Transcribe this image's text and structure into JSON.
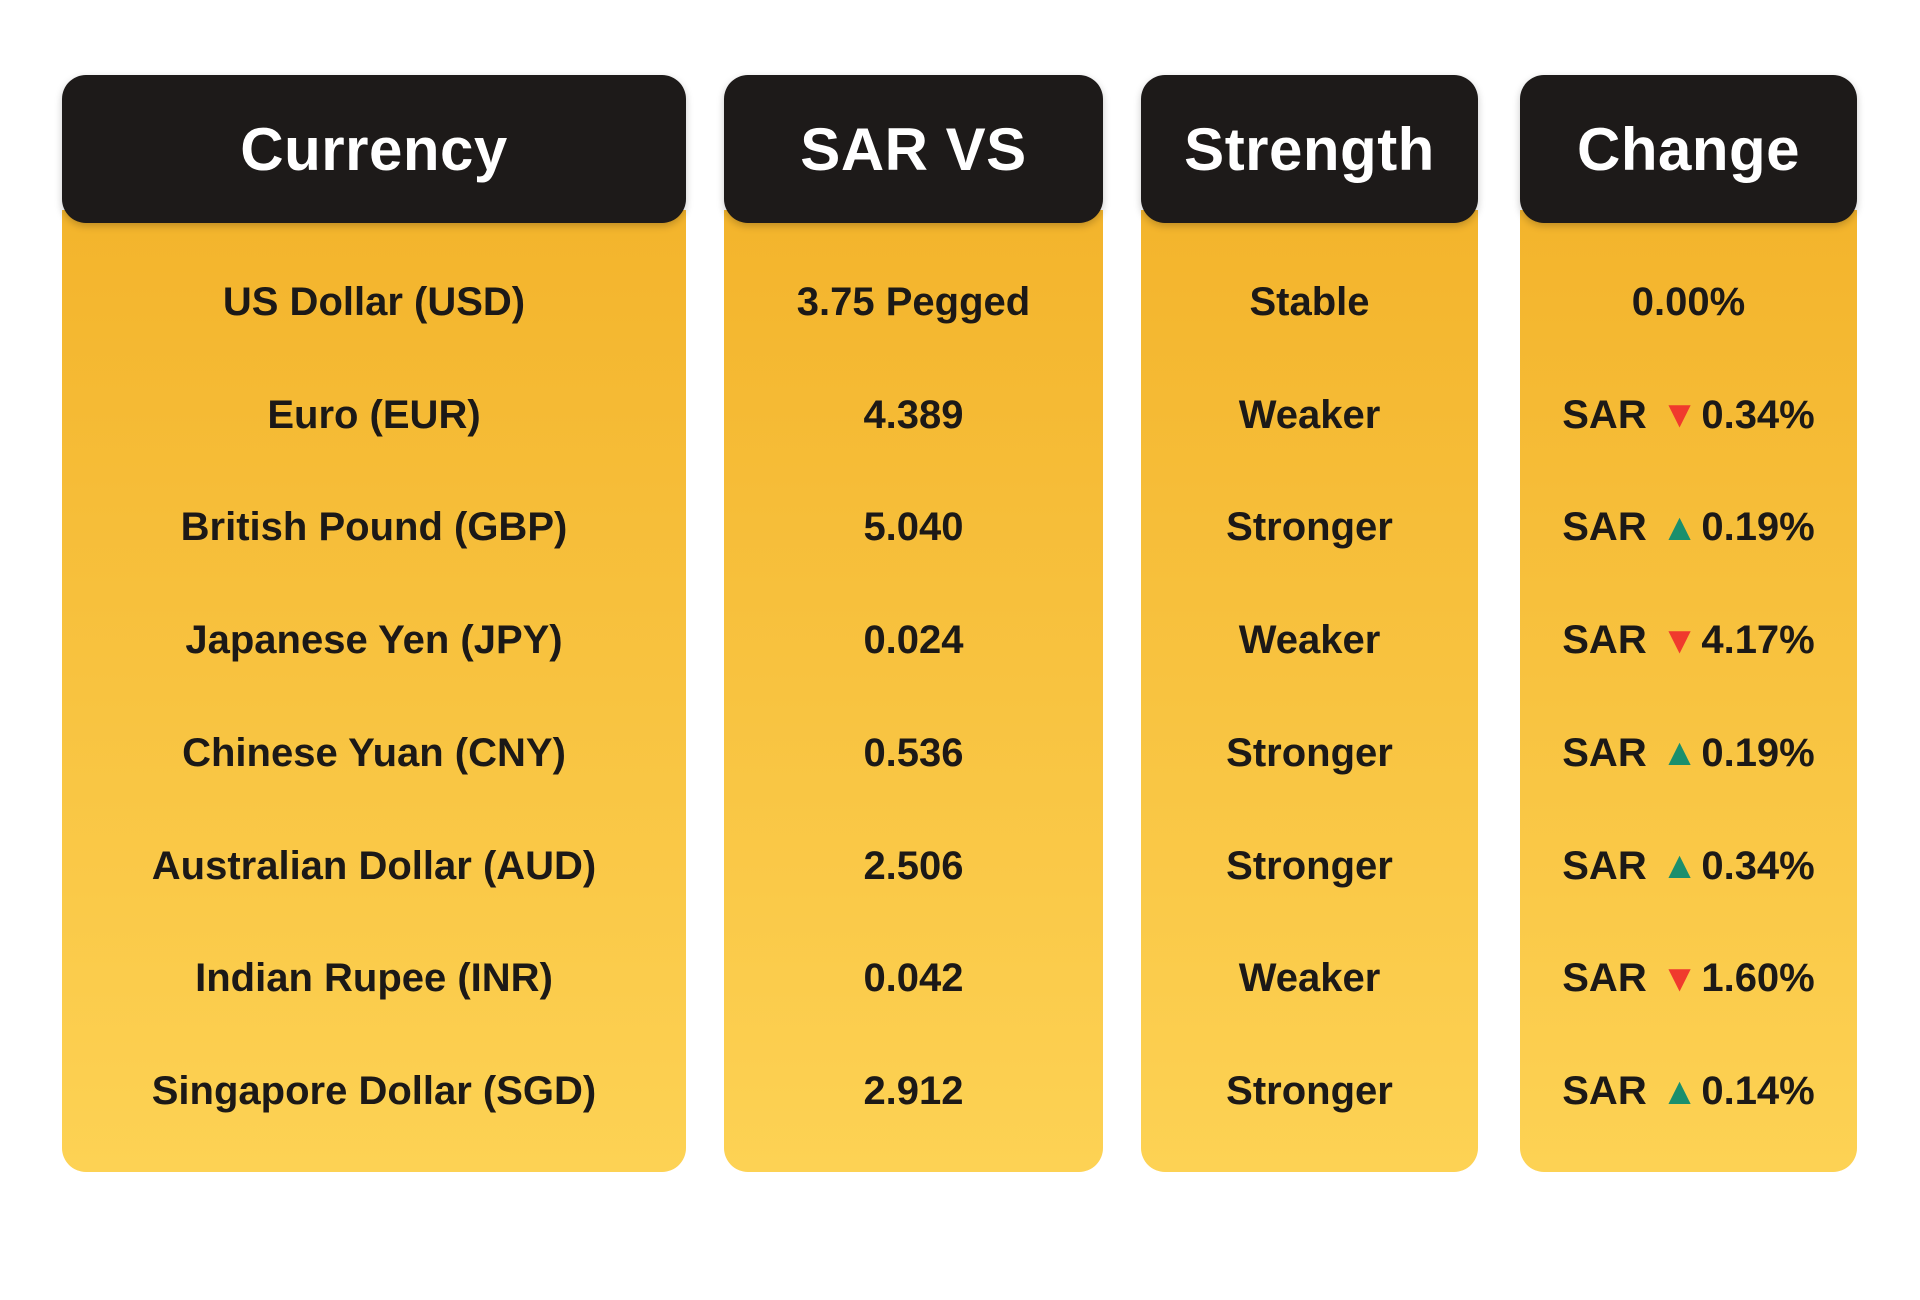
{
  "columns": {
    "currency": {
      "header": "Currency",
      "rows": [
        "US Dollar (USD)",
        "Euro (EUR)",
        "British Pound (GBP)",
        "Japanese Yen (JPY)",
        "Chinese Yuan (CNY)",
        "Australian Dollar (AUD)",
        "Indian Rupee (INR)",
        "Singapore Dollar (SGD)"
      ]
    },
    "sar_vs": {
      "header": "SAR VS",
      "rows": [
        "3.75 Pegged",
        "4.389",
        "5.040",
        "0.024",
        "0.536",
        "2.506",
        "0.042",
        "2.912"
      ]
    },
    "strength": {
      "header": "Strength",
      "rows": [
        "Stable",
        "Weaker",
        "Stronger",
        "Weaker",
        "Stronger",
        "Stronger",
        "Weaker",
        "Stronger"
      ]
    },
    "change": {
      "header": "Change",
      "rows": [
        {
          "prefix": "",
          "arrow": "none",
          "value": "0.00%"
        },
        {
          "prefix": "SAR",
          "arrow": "down",
          "value": "0.34%"
        },
        {
          "prefix": "SAR",
          "arrow": "up",
          "value": "0.19%"
        },
        {
          "prefix": "SAR",
          "arrow": "down",
          "value": "4.17%"
        },
        {
          "prefix": "SAR",
          "arrow": "up",
          "value": "0.19%"
        },
        {
          "prefix": "SAR",
          "arrow": "up",
          "value": "0.34%"
        },
        {
          "prefix": "SAR",
          "arrow": "down",
          "value": "1.60%"
        },
        {
          "prefix": "SAR",
          "arrow": "up",
          "value": "0.14%"
        }
      ]
    }
  },
  "icons": {
    "up": "▲",
    "down": "▼"
  },
  "colors": {
    "page_bg": "#ffffff",
    "header_bg": "#1d1a19",
    "header_text": "#ffffff",
    "body_top": "#f3b42c",
    "body_bottom": "#fdd254",
    "text": "#1c1917",
    "up": "#1a8f6d",
    "down": "#f03a2d"
  },
  "chart_data": {
    "type": "table",
    "columns": [
      "Currency",
      "SAR VS",
      "Strength",
      "Change"
    ],
    "rows": [
      [
        "US Dollar (USD)",
        "3.75 Pegged",
        "Stable",
        "0.00%"
      ],
      [
        "Euro (EUR)",
        "4.389",
        "Weaker",
        "SAR ▼0.34%"
      ],
      [
        "British Pound (GBP)",
        "5.040",
        "Stronger",
        "SAR ▲0.19%"
      ],
      [
        "Japanese Yen (JPY)",
        "0.024",
        "Weaker",
        "SAR ▼4.17%"
      ],
      [
        "Chinese Yuan (CNY)",
        "0.536",
        "Stronger",
        "SAR ▲0.19%"
      ],
      [
        "Australian Dollar (AUD)",
        "2.506",
        "Stronger",
        "SAR ▲0.34%"
      ],
      [
        "Indian Rupee (INR)",
        "0.042",
        "Weaker",
        "SAR ▼1.60%"
      ],
      [
        "Singapore Dollar (SGD)",
        "2.912",
        "Stronger",
        "SAR ▲0.14%"
      ]
    ]
  }
}
